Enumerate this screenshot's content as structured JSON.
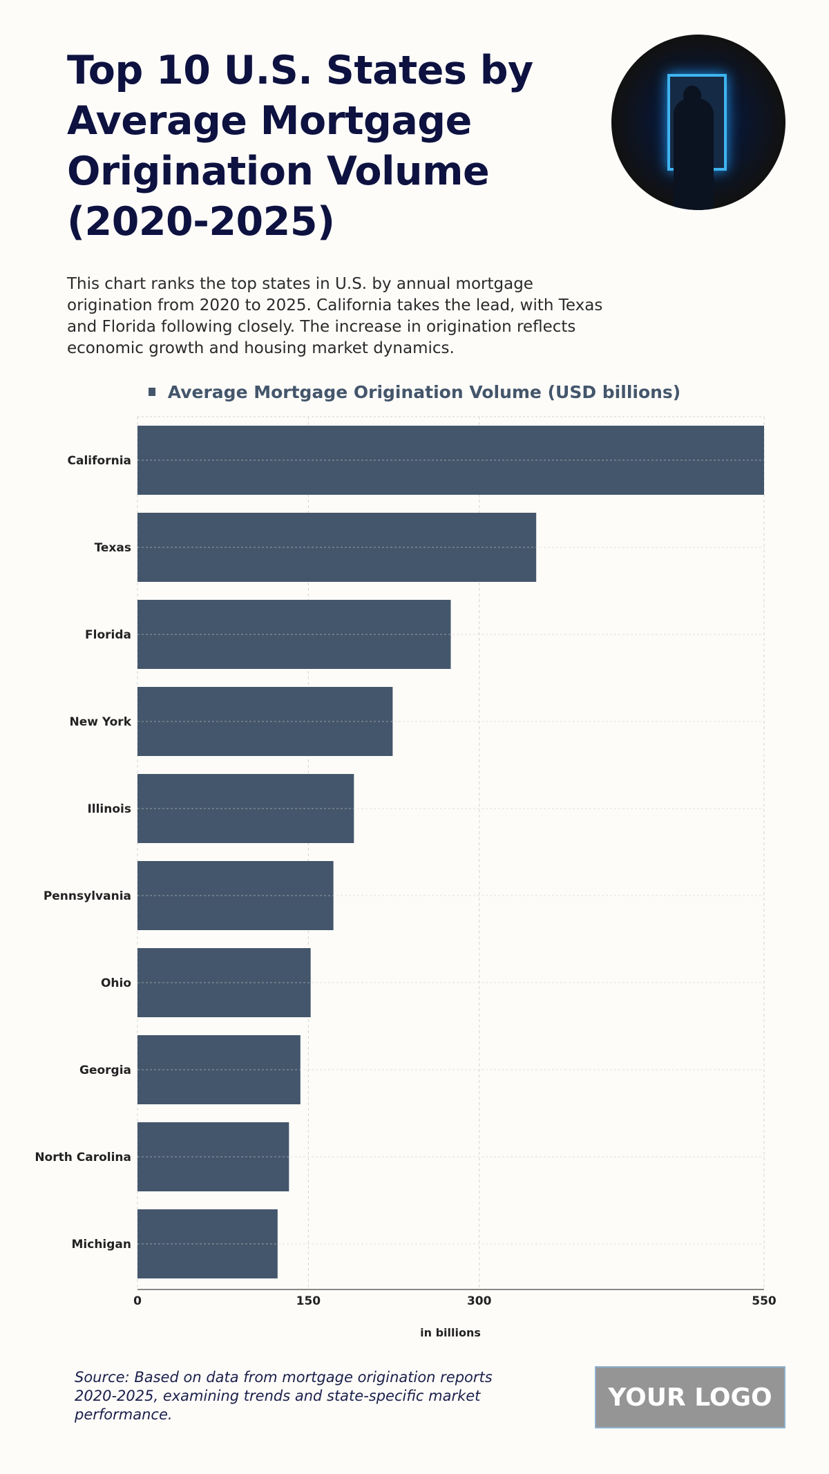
{
  "header": {
    "title": "Top 10 U.S. States by Average Mortgage Origination Volume (2020-2025)",
    "description": "This chart ranks the top states in U.S. by annual mortgage origination from 2020 to 2025. California takes the lead, with Texas and Florida following closely. The increase in origination reflects economic growth and housing market dynamics."
  },
  "chart_data": {
    "type": "bar",
    "orientation": "horizontal",
    "categories": [
      "California",
      "Texas",
      "Florida",
      "New York",
      "Illinois",
      "Pennsylvania",
      "Ohio",
      "Georgia",
      "North Carolina",
      "Michigan"
    ],
    "series": [
      {
        "name": "Average Mortgage Origination Volume (USD billions)",
        "values": [
          550,
          350,
          275,
          224,
          190,
          172,
          152,
          143,
          133,
          123
        ]
      }
    ],
    "xlabel": "in billions",
    "ylabel": "",
    "xlim": [
      0,
      550
    ],
    "xticks": [
      0,
      150,
      300,
      550
    ],
    "grid": true,
    "legend": "top",
    "bar_color": "#44566b"
  },
  "footer": {
    "source": "Source: Based on data from mortgage origination reports 2020-2025, examining trends and state-specific market performance.",
    "logo": "YOUR LOGO"
  }
}
